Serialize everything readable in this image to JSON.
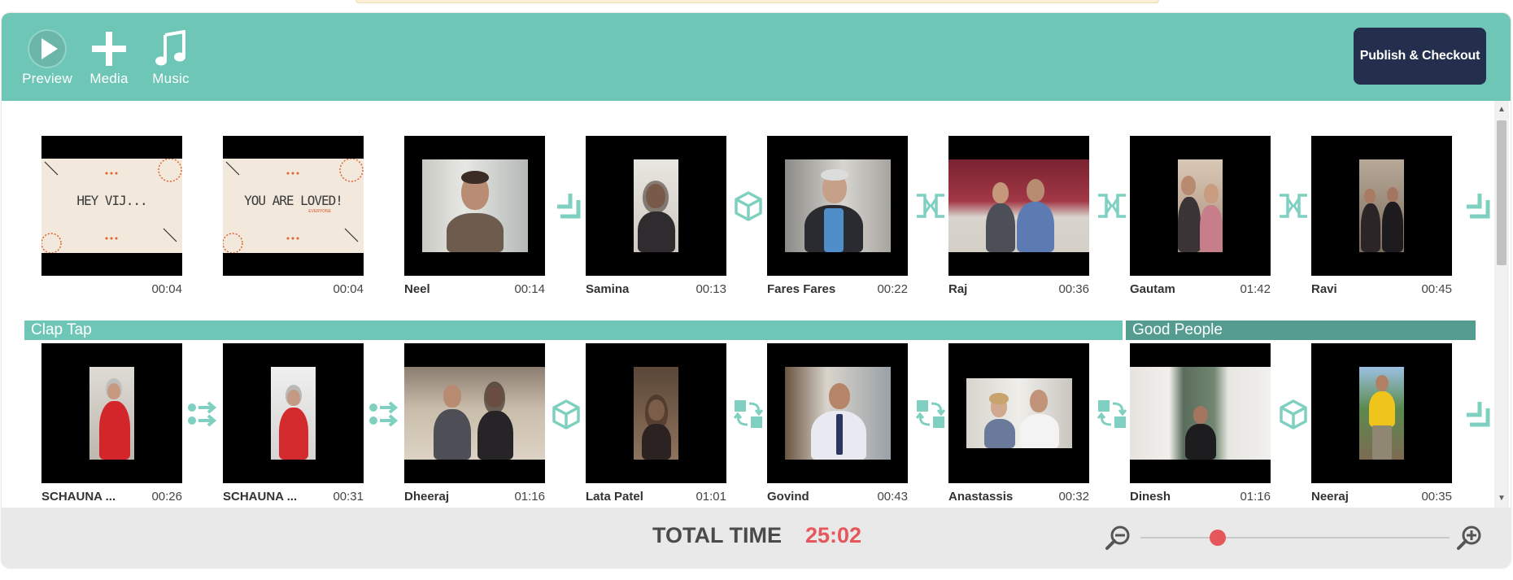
{
  "toolbar": {
    "preview_label": "Preview",
    "media_label": "Media",
    "music_label": "Music",
    "publish_label": "Publish & Checkout",
    "color": "#6ec6b6"
  },
  "clips_row1": [
    {
      "name": "",
      "duration": "00:04",
      "card_text": "HEY VIJ..."
    },
    {
      "name": "",
      "duration": "00:04",
      "card_text": "YOU ARE LOVED!",
      "card_sub": "EVERYONE"
    },
    {
      "name": "Neel",
      "duration": "00:14"
    },
    {
      "name": "Samina",
      "duration": "00:13"
    },
    {
      "name": "Fares Fares",
      "duration": "00:22"
    },
    {
      "name": "Raj",
      "duration": "00:36"
    },
    {
      "name": "Gautam",
      "duration": "01:42"
    },
    {
      "name": "Ravi",
      "duration": "00:45"
    }
  ],
  "clips_row2": [
    {
      "name": "SCHAUNA ...",
      "duration": "00:26"
    },
    {
      "name": "SCHAUNA ...",
      "duration": "00:31"
    },
    {
      "name": "Dheeraj",
      "duration": "01:16"
    },
    {
      "name": "Lata Patel",
      "duration": "01:01"
    },
    {
      "name": "Govind",
      "duration": "00:43"
    },
    {
      "name": "Anastassis",
      "duration": "00:32"
    },
    {
      "name": "Dinesh",
      "duration": "01:16"
    },
    {
      "name": "Neeraj",
      "duration": "00:35"
    }
  ],
  "transitions_row1": [
    "corner-transition-icon",
    "cube-transition-icon",
    "split-transition-icon",
    "split-transition-icon",
    "split-transition-icon",
    "corner-transition-icon"
  ],
  "transitions_row2": [
    "slide-transition-icon",
    "slide-transition-icon",
    "cube-transition-icon",
    "swap-transition-icon",
    "swap-transition-icon",
    "swap-transition-icon",
    "cube-transition-icon",
    "corner-transition-icon"
  ],
  "music_tracks": [
    {
      "title": "Clap Tap",
      "color": "#6ec6b6"
    },
    {
      "title": "Good People",
      "color": "#559c90"
    }
  ],
  "footer": {
    "total_label": "TOTAL TIME",
    "total_value": "25:02",
    "zoom_level": 0.25
  },
  "colors": {
    "accent": "#6ec6b6",
    "publish": "#232f4c",
    "total_time": "#e5575b",
    "transition": "#7fd0c0"
  }
}
